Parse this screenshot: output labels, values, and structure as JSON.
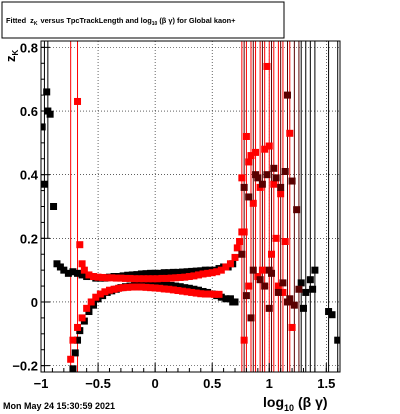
{
  "footer": {
    "timestamp": "Mon May 24 15:30:59 2021"
  },
  "chart_data": {
    "type": "scatter",
    "title_parts": {
      "a": "Fitted",
      "z_sym": "z",
      "z_sub": "K",
      "b": "versus TpcTrackLength and log",
      "log_sub": "10",
      "c": "(β γ) for Global kaon+"
    },
    "xlabel_main": "log",
    "xlabel_sub": "10",
    "xlabel_tail": "(β γ)",
    "ylabel_main": "z",
    "ylabel_sub": "K",
    "xlim": [
      -1.0,
      1.62
    ],
    "ylim": [
      -0.22,
      0.82
    ],
    "xticks": [
      -1,
      -0.5,
      0,
      0.5,
      1,
      1.5
    ],
    "xtick_labels": [
      "−1",
      "−0.5",
      "0",
      "0.5",
      "1",
      "1.5"
    ],
    "yticks": [
      -0.2,
      0,
      0.2,
      0.4,
      0.6,
      0.8
    ],
    "ytick_labels": [
      "−0.2",
      "0",
      "0.2",
      "0.4",
      "0.6",
      "0.8"
    ],
    "grid": true,
    "colors": {
      "black_series": "#000000",
      "red_series": "#ff0000",
      "dark_series": "#5a0000",
      "frame": "#000000",
      "grid": "#000000"
    },
    "series": [
      {
        "color": "#000000",
        "points": [
          [
            -0.99,
            0.55
          ],
          [
            -0.97,
            0.37
          ],
          [
            -0.95,
            0.66
          ],
          [
            -0.94,
            0.6
          ],
          [
            -0.92,
            0.59
          ],
          [
            -0.89,
            0.3
          ],
          [
            -0.86,
            0.12
          ],
          [
            -0.83,
            0.11
          ],
          [
            -0.8,
            0.1
          ],
          [
            -0.76,
            0.09
          ],
          [
            -0.72,
            0.095
          ],
          [
            -0.68,
            0.09
          ],
          [
            -0.64,
            0.085
          ],
          [
            -0.6,
            0.08
          ],
          [
            -0.56,
            0.08
          ],
          [
            -0.52,
            0.075
          ],
          [
            -0.48,
            0.075
          ],
          [
            -0.44,
            0.075
          ],
          [
            -0.4,
            0.078
          ],
          [
            -0.36,
            0.08
          ],
          [
            -0.32,
            0.08
          ],
          [
            -0.28,
            0.082
          ],
          [
            -0.24,
            0.084
          ],
          [
            -0.2,
            0.085
          ],
          [
            -0.16,
            0.086
          ],
          [
            -0.12,
            0.088
          ],
          [
            -0.08,
            0.089
          ],
          [
            -0.04,
            0.09
          ],
          [
            0.0,
            0.09
          ],
          [
            0.04,
            0.09
          ],
          [
            0.08,
            0.092
          ],
          [
            0.12,
            0.092
          ],
          [
            0.16,
            0.093
          ],
          [
            0.2,
            0.093
          ],
          [
            0.24,
            0.094
          ],
          [
            0.28,
            0.095
          ],
          [
            0.32,
            0.096
          ],
          [
            0.36,
            0.097
          ],
          [
            0.4,
            0.098
          ],
          [
            0.44,
            0.1
          ],
          [
            0.48,
            0.1
          ],
          [
            0.52,
            0.1
          ],
          [
            0.56,
            0.105
          ],
          [
            0.6,
            0.11
          ],
          [
            0.64,
            0.11
          ],
          [
            0.68,
            0.12
          ],
          [
            -0.76,
            -0.25
          ],
          [
            -0.74,
            -0.23
          ],
          [
            -0.72,
            -0.21
          ],
          [
            -0.7,
            -0.16
          ],
          [
            -0.68,
            -0.12
          ],
          [
            -0.66,
            -0.09
          ],
          [
            -0.62,
            -0.06
          ],
          [
            -0.58,
            -0.03
          ],
          [
            -0.54,
            -0.01
          ],
          [
            -0.5,
            0.01
          ],
          [
            -0.46,
            0.02
          ],
          [
            -0.42,
            0.03
          ],
          [
            -0.38,
            0.035
          ],
          [
            -0.34,
            0.04
          ],
          [
            -0.3,
            0.045
          ],
          [
            -0.26,
            0.048
          ],
          [
            -0.22,
            0.05
          ],
          [
            -0.18,
            0.052
          ],
          [
            -0.14,
            0.053
          ],
          [
            -0.1,
            0.054
          ],
          [
            -0.06,
            0.055
          ],
          [
            -0.02,
            0.055
          ],
          [
            0.02,
            0.055
          ],
          [
            0.06,
            0.054
          ],
          [
            0.1,
            0.053
          ],
          [
            0.14,
            0.052
          ],
          [
            0.18,
            0.05
          ],
          [
            0.22,
            0.048
          ],
          [
            0.26,
            0.045
          ],
          [
            0.3,
            0.043
          ],
          [
            0.34,
            0.04
          ],
          [
            0.38,
            0.037
          ],
          [
            0.42,
            0.033
          ],
          [
            0.46,
            0.03
          ],
          [
            0.5,
            0.025
          ],
          [
            0.54,
            0.02
          ],
          [
            0.58,
            0.015
          ],
          [
            0.62,
            0.01
          ],
          [
            0.66,
            0.01
          ],
          [
            0.68,
            0.0
          ],
          [
            0.7,
            0.0
          ],
          [
            1.28,
            0.06
          ],
          [
            1.32,
            0.03
          ],
          [
            1.38,
            0.04
          ],
          [
            1.4,
            0.1
          ],
          [
            1.52,
            -0.03
          ],
          [
            1.55,
            -0.04
          ],
          [
            1.6,
            -0.12
          ],
          [
            1.3,
            -0.02
          ],
          [
            1.36,
            0.07
          ]
        ]
      },
      {
        "color": "#ff0000",
        "points": [
          [
            -0.74,
            -0.18
          ],
          [
            -0.68,
            0.63
          ],
          [
            -0.66,
            0.18
          ],
          [
            -0.64,
            0.12
          ],
          [
            -0.62,
            0.1
          ],
          [
            -0.58,
            0.085
          ],
          [
            -0.54,
            0.08
          ],
          [
            -0.5,
            0.078
          ],
          [
            -0.46,
            0.077
          ],
          [
            -0.42,
            0.076
          ],
          [
            -0.38,
            0.076
          ],
          [
            -0.34,
            0.075
          ],
          [
            -0.3,
            0.075
          ],
          [
            -0.26,
            0.074
          ],
          [
            -0.22,
            0.074
          ],
          [
            -0.18,
            0.073
          ],
          [
            -0.14,
            0.073
          ],
          [
            -0.1,
            0.073
          ],
          [
            -0.06,
            0.073
          ],
          [
            -0.02,
            0.073
          ],
          [
            0.02,
            0.073
          ],
          [
            0.06,
            0.074
          ],
          [
            0.1,
            0.074
          ],
          [
            0.14,
            0.075
          ],
          [
            0.18,
            0.076
          ],
          [
            0.22,
            0.077
          ],
          [
            0.26,
            0.078
          ],
          [
            0.3,
            0.08
          ],
          [
            0.34,
            0.082
          ],
          [
            0.38,
            0.085
          ],
          [
            0.42,
            0.088
          ],
          [
            0.46,
            0.09
          ],
          [
            0.5,
            0.092
          ],
          [
            0.54,
            0.095
          ],
          [
            0.58,
            0.1
          ],
          [
            0.62,
            0.11
          ],
          [
            0.66,
            0.12
          ],
          [
            0.7,
            0.14
          ],
          [
            0.72,
            0.17
          ],
          [
            0.74,
            0.19
          ],
          [
            0.76,
            0.22
          ],
          [
            -0.72,
            -0.12
          ],
          [
            -0.68,
            -0.08
          ],
          [
            -0.64,
            -0.05
          ],
          [
            -0.6,
            -0.02
          ],
          [
            -0.56,
            0.0
          ],
          [
            -0.52,
            0.015
          ],
          [
            -0.48,
            0.025
          ],
          [
            -0.44,
            0.032
          ],
          [
            -0.4,
            0.037
          ],
          [
            -0.36,
            0.04
          ],
          [
            -0.32,
            0.043
          ],
          [
            -0.28,
            0.045
          ],
          [
            -0.24,
            0.046
          ],
          [
            -0.2,
            0.047
          ],
          [
            -0.16,
            0.047
          ],
          [
            -0.12,
            0.047
          ],
          [
            -0.08,
            0.046
          ],
          [
            -0.04,
            0.045
          ],
          [
            0.0,
            0.044
          ],
          [
            0.04,
            0.043
          ],
          [
            0.08,
            0.041
          ],
          [
            0.12,
            0.04
          ],
          [
            0.16,
            0.038
          ],
          [
            0.2,
            0.036
          ],
          [
            0.24,
            0.034
          ],
          [
            0.28,
            0.032
          ],
          [
            0.32,
            0.03
          ],
          [
            0.36,
            0.028
          ],
          [
            0.4,
            0.026
          ],
          [
            0.44,
            0.025
          ],
          [
            0.48,
            0.025
          ],
          [
            0.52,
            0.024
          ],
          [
            0.56,
            0.024
          ],
          [
            0.76,
            0.39
          ],
          [
            0.78,
            0.22
          ],
          [
            0.8,
            0.52
          ],
          [
            0.82,
            0.44
          ],
          [
            0.84,
            0.46
          ],
          [
            0.88,
            0.47
          ],
          [
            0.9,
            0.08
          ],
          [
            0.92,
            0.36
          ],
          [
            0.96,
            0.48
          ],
          [
            0.98,
            0.74
          ],
          [
            1.0,
            0.49
          ],
          [
            1.02,
            0.15
          ],
          [
            1.04,
            0.37
          ],
          [
            1.06,
            0.2
          ],
          [
            1.1,
            0.34
          ],
          [
            1.14,
            0.19
          ],
          [
            1.18,
            0.53
          ],
          [
            1.2,
            -0.08
          ],
          [
            0.78,
            -0.12
          ],
          [
            0.82,
            0.05
          ],
          [
            0.86,
            0.31
          ],
          [
            0.94,
            0.1
          ],
          [
            1.08,
            0.05
          ],
          [
            1.12,
            0.03
          ]
        ]
      },
      {
        "color": "#5a0000",
        "points": [
          [
            0.76,
            0.15
          ],
          [
            0.78,
            0.36
          ],
          [
            0.8,
            0.02
          ],
          [
            0.84,
            -0.05
          ],
          [
            0.86,
            0.1
          ],
          [
            0.88,
            0.4
          ],
          [
            0.9,
            0.39
          ],
          [
            0.92,
            0.07
          ],
          [
            0.94,
            0.37
          ],
          [
            0.96,
            0.05
          ],
          [
            0.98,
            0.4
          ],
          [
            1.0,
            -0.02
          ],
          [
            1.02,
            0.09
          ],
          [
            1.04,
            0.42
          ],
          [
            1.06,
            0.39
          ],
          [
            1.08,
            0.03
          ],
          [
            1.1,
            0.36
          ],
          [
            1.12,
            0.06
          ],
          [
            1.14,
            0.41
          ],
          [
            1.16,
            0.65
          ],
          [
            1.18,
            0.01
          ],
          [
            1.2,
            0.38
          ],
          [
            1.22,
            -0.01
          ],
          [
            1.24,
            0.29
          ],
          [
            1.26,
            0.04
          ],
          [
            0.82,
            0.33
          ],
          [
            1.0,
            0.1
          ],
          [
            1.16,
            0.0
          ]
        ]
      }
    ],
    "error_bars": [
      {
        "color": "#ff0000",
        "x": -0.74,
        "lo": -0.25,
        "hi": 0.82
      },
      {
        "color": "#ff0000",
        "x": -0.68,
        "lo": -0.25,
        "hi": 0.82
      },
      {
        "color": "#000000",
        "x": -0.97,
        "lo": -0.25,
        "hi": 0.82
      },
      {
        "color": "#000000",
        "x": -0.94,
        "lo": 0.2,
        "hi": 0.82
      },
      {
        "color": "#ff0000",
        "x": 0.76,
        "lo": -0.25,
        "hi": 0.82
      },
      {
        "color": "#ff0000",
        "x": 0.8,
        "lo": -0.25,
        "hi": 0.82
      },
      {
        "color": "#ff0000",
        "x": 0.84,
        "lo": -0.25,
        "hi": 0.82
      },
      {
        "color": "#ff0000",
        "x": 0.88,
        "lo": -0.25,
        "hi": 0.82
      },
      {
        "color": "#ff0000",
        "x": 0.92,
        "lo": -0.25,
        "hi": 0.82
      },
      {
        "color": "#ff0000",
        "x": 0.96,
        "lo": -0.25,
        "hi": 0.82
      },
      {
        "color": "#ff0000",
        "x": 1.0,
        "lo": -0.25,
        "hi": 0.82
      },
      {
        "color": "#ff0000",
        "x": 1.04,
        "lo": -0.25,
        "hi": 0.82
      },
      {
        "color": "#ff0000",
        "x": 1.08,
        "lo": -0.25,
        "hi": 0.82
      },
      {
        "color": "#ff0000",
        "x": 1.12,
        "lo": -0.25,
        "hi": 0.82
      },
      {
        "color": "#ff0000",
        "x": 1.18,
        "lo": -0.25,
        "hi": 0.82
      },
      {
        "color": "#5a0000",
        "x": 0.78,
        "lo": -0.25,
        "hi": 0.82
      },
      {
        "color": "#5a0000",
        "x": 0.86,
        "lo": -0.25,
        "hi": 0.82
      },
      {
        "color": "#5a0000",
        "x": 0.94,
        "lo": -0.25,
        "hi": 0.82
      },
      {
        "color": "#5a0000",
        "x": 1.02,
        "lo": -0.25,
        "hi": 0.82
      },
      {
        "color": "#5a0000",
        "x": 1.1,
        "lo": -0.25,
        "hi": 0.82
      },
      {
        "color": "#5a0000",
        "x": 1.16,
        "lo": -0.25,
        "hi": 0.82
      },
      {
        "color": "#5a0000",
        "x": 1.22,
        "lo": -0.25,
        "hi": 0.82
      },
      {
        "color": "#5a0000",
        "x": 1.26,
        "lo": -0.25,
        "hi": 0.82
      },
      {
        "color": "#000000",
        "x": 1.28,
        "lo": -0.25,
        "hi": 0.82
      },
      {
        "color": "#000000",
        "x": 1.32,
        "lo": -0.25,
        "hi": 0.82
      },
      {
        "color": "#000000",
        "x": 1.36,
        "lo": -0.25,
        "hi": 0.82
      },
      {
        "color": "#000000",
        "x": 1.4,
        "lo": -0.25,
        "hi": 0.82
      },
      {
        "color": "#000000",
        "x": 1.52,
        "lo": -0.25,
        "hi": 0.82
      },
      {
        "color": "#000000",
        "x": 1.6,
        "lo": -0.25,
        "hi": 0.82
      }
    ]
  }
}
